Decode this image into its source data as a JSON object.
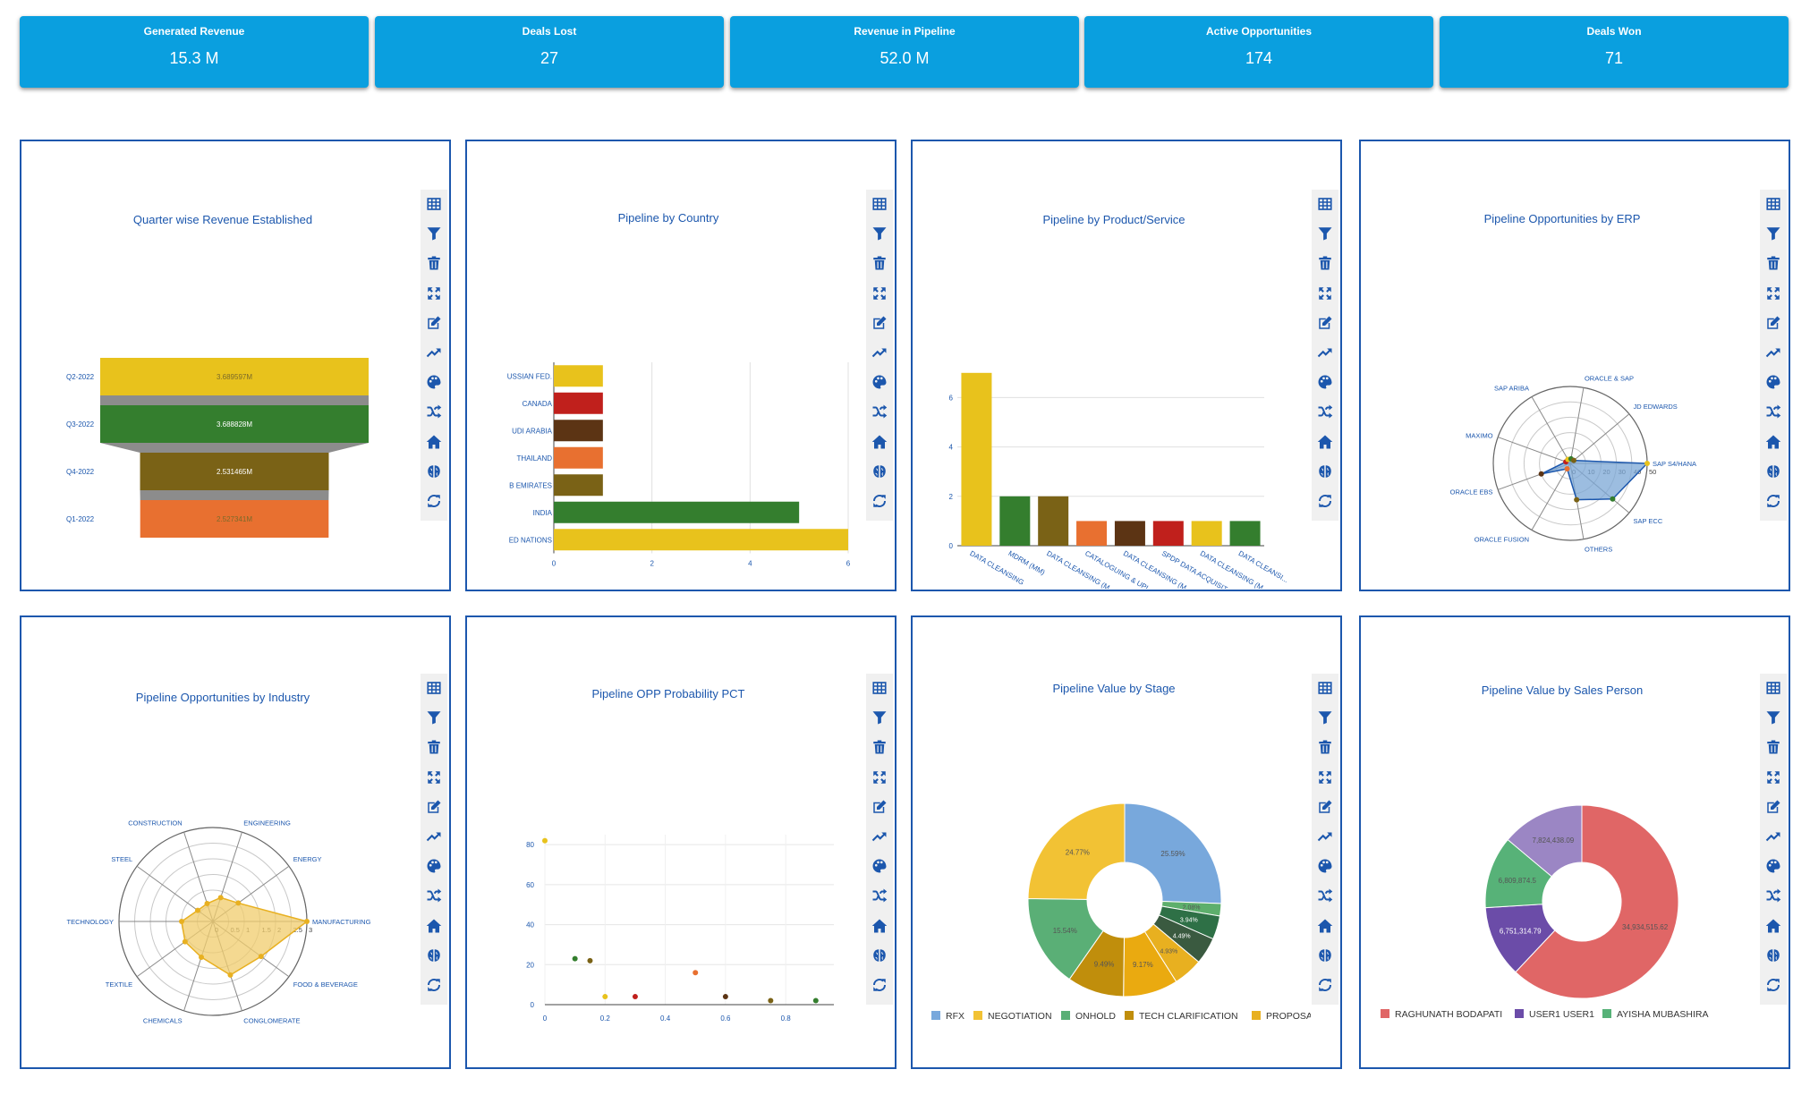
{
  "kpis": [
    {
      "title": "Generated Revenue",
      "value": "15.3 M"
    },
    {
      "title": "Deals Lost",
      "value": "27"
    },
    {
      "title": "Revenue in Pipeline",
      "value": "52.0 M"
    },
    {
      "title": "Active Opportunities",
      "value": "174"
    },
    {
      "title": "Deals Won",
      "value": "71"
    }
  ],
  "toolbar_icons": [
    "table-icon",
    "filter-icon",
    "trash-icon",
    "expand-icon",
    "edit-icon",
    "trend-icon",
    "palette-icon",
    "shuffle-icon",
    "home-icon",
    "brain-icon",
    "refresh-icon"
  ],
  "colors": {
    "kpi_bg": "#0a9fdf",
    "panel_border": "#1c57ad",
    "title_text": "#1c57ad"
  },
  "chart_data": [
    {
      "type": "funnel",
      "title": "Quarter wise Revenue Established",
      "categories": [
        "Q2-2022",
        "Q3-2022",
        "Q4-2022",
        "Q1-2022"
      ],
      "values": [
        3.689597,
        3.688828,
        2.531465,
        2.527341
      ],
      "labels": [
        "3.689597M",
        "3.688828M",
        "2.531465M",
        "2.527341M"
      ],
      "colors": [
        "#e8c21c",
        "#347e2e",
        "#7a6216",
        "#e87030"
      ]
    },
    {
      "type": "bar",
      "orientation": "horizontal",
      "title": "Pipeline by Country",
      "categories": [
        "USSIAN FED.",
        "CANADA",
        "UDI ARABIA",
        "THAILAND",
        "B EMIRATES",
        "INDIA",
        "ED NATIONS"
      ],
      "values": [
        1,
        1,
        1,
        1,
        1,
        5,
        6
      ],
      "xticks": [
        "0",
        "2",
        "4",
        "6"
      ],
      "xlim": [
        0,
        6
      ],
      "colors": [
        "#e8c21c",
        "#c0201c",
        "#5c3414",
        "#e87030",
        "#7a6216",
        "#347e2e",
        "#e8c21c"
      ]
    },
    {
      "type": "bar",
      "title": "Pipeline by Product/Service",
      "categories": [
        "DATA CLEANSING",
        "MDRM (MM)",
        "DATA CLEANSING (M...",
        "CATALOGUING & UPL...",
        "DATA CLEANSING (M...",
        "SPDP DATA ACQUISIT...",
        "DATA CLEANSING (M...",
        "DATA CLEANSI..."
      ],
      "values": [
        7,
        2,
        2,
        1,
        1,
        1,
        1,
        1
      ],
      "yticks": [
        "0",
        "2",
        "4",
        "6"
      ],
      "ylim": [
        0,
        7.5
      ],
      "colors": [
        "#e8c21c",
        "#347e2e",
        "#7a6216",
        "#e87030",
        "#5c3414",
        "#c0201c",
        "#e8c21c",
        "#347e2e"
      ]
    },
    {
      "type": "radar",
      "title": "Pipeline Opportunities by ERP",
      "categories": [
        "SAP S4/HANA",
        "SAP ECC",
        "OTHERS",
        "ORACLE FUSION",
        "ORACLE EBS",
        "MAXIMO",
        "SAP ARIBA",
        "ORACLE & SAP",
        "JD EDWARDS"
      ],
      "values": [
        50,
        36,
        24,
        4,
        20,
        3,
        3,
        3,
        3
      ],
      "rticks": [
        "0",
        "10",
        "20",
        "30",
        "40",
        "50"
      ],
      "rmax": 50,
      "fill": "#7ba7d6",
      "point_colors": [
        "#e8c21c",
        "#347e2e",
        "#7a6216",
        "#e87030",
        "#5c3414",
        "#c0201c",
        "#e8c21c",
        "#347e2e",
        "#7a6216"
      ]
    },
    {
      "type": "radar",
      "title": "Pipeline Opportunities by Industry",
      "categories": [
        "MANUFACTURING",
        "FOOD & BEVERAGE",
        "CONGLOMERATE",
        "CHEMICALS",
        "TEXTILE",
        "TECHNOLOGY",
        "STEEL",
        "CONSTRUCTION",
        "ENGINEERING",
        "ENERGY"
      ],
      "values": [
        3,
        1.9,
        1.8,
        1.2,
        1.1,
        1,
        0.6,
        0.6,
        0.8,
        1
      ],
      "rticks": [
        "0",
        "0.5",
        "1",
        "1.5",
        "2",
        "2.5",
        "3"
      ],
      "rmax": 3,
      "fill": "#f0cc6c"
    },
    {
      "type": "scatter",
      "title": "Pipeline OPP Probability PCT",
      "points": [
        {
          "x": 0,
          "y": 82,
          "color": "#e8c21c"
        },
        {
          "x": 0.1,
          "y": 23,
          "color": "#347e2e"
        },
        {
          "x": 0.15,
          "y": 22,
          "color": "#7a6216"
        },
        {
          "x": 0.2,
          "y": 4,
          "color": "#e8c21c"
        },
        {
          "x": 0.3,
          "y": 4,
          "color": "#c0201c"
        },
        {
          "x": 0.5,
          "y": 16,
          "color": "#e87030"
        },
        {
          "x": 0.6,
          "y": 4,
          "color": "#5c3414"
        },
        {
          "x": 0.75,
          "y": 2,
          "color": "#7a6216"
        },
        {
          "x": 0.9,
          "y": 2,
          "color": "#347e2e"
        }
      ],
      "xticks": [
        "0",
        "0.2",
        "0.4",
        "0.6",
        "0.8"
      ],
      "yticks": [
        "0",
        "20",
        "40",
        "60",
        "80"
      ],
      "xlim": [
        0,
        0.96
      ],
      "ylim": [
        0,
        85
      ]
    },
    {
      "type": "pie",
      "donut": true,
      "title": "Pipeline Value by Stage",
      "slices": [
        {
          "name": "RFX",
          "value": 25.59,
          "label": "25.59%",
          "color": "#78a8dc"
        },
        {
          "name": "",
          "value": 2.08,
          "label": "2.08%",
          "color": "#5daf6c"
        },
        {
          "name": "",
          "value": 3.94,
          "label": "3.94%",
          "color": "#2e7046"
        },
        {
          "name": "",
          "value": 4.49,
          "label": "4.49%",
          "color": "#3a5a40"
        },
        {
          "name": "PROPOSAL",
          "value": 4.93,
          "label": "4.93%",
          "color": "#e8b020"
        },
        {
          "name": "",
          "value": 9.17,
          "label": "9.17%",
          "color": "#eaaa10"
        },
        {
          "name": "TECH CLARIFICATION",
          "value": 9.49,
          "label": "9.49%",
          "color": "#c08e0c"
        },
        {
          "name": "ONHOLD",
          "value": 15.54,
          "label": "15.54%",
          "color": "#5aaf76"
        },
        {
          "name": "NEGOTIATION",
          "value": 24.77,
          "label": "24.77%",
          "color": "#f2c234"
        }
      ],
      "legend": [
        "RFX",
        "NEGOTIATION",
        "ONHOLD",
        "TECH CLARIFICATION",
        "PROPOSAL"
      ],
      "legend_colors": [
        "#78a8dc",
        "#f2c234",
        "#5aaf76",
        "#c08e0c",
        "#e8b020"
      ]
    },
    {
      "type": "pie",
      "donut": true,
      "title": "Pipeline Value by Sales Person",
      "slices": [
        {
          "name": "RAGHUNATH BODAPATI",
          "value": 34934515.62,
          "label": "34,934,515.62",
          "color": "#e06666"
        },
        {
          "name": "USER1 USER1",
          "value": 6751314.79,
          "label": "6,751,314.79",
          "color": "#6b4ca8"
        },
        {
          "name": "AYISHA MUBASHIRA",
          "value": 6809874.5,
          "label": "6,809,874.5",
          "color": "#57b278"
        },
        {
          "name": "",
          "value": 7824438.09,
          "label": "7,824,438.09",
          "color": "#9b86c4"
        }
      ],
      "legend": [
        "RAGHUNATH BODAPATI",
        "USER1 USER1",
        "AYISHA MUBASHIRA"
      ],
      "legend_colors": [
        "#e06666",
        "#6b4ca8",
        "#57b278"
      ]
    }
  ]
}
